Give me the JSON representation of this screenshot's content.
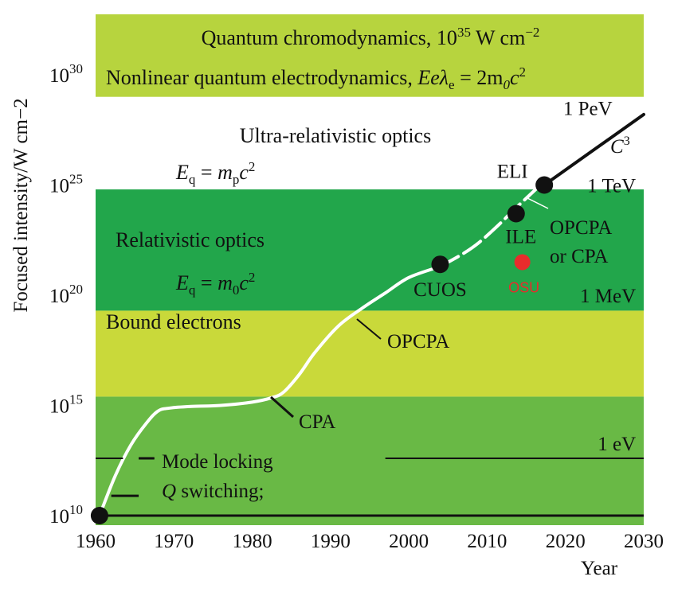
{
  "chart_data": {
    "type": "line",
    "title": "",
    "xlabel": "Year",
    "ylabel": "Focused intensity/W cm−2",
    "xlim": [
      1960,
      2030
    ],
    "ylim": [
      9.5,
      34
    ],
    "x_ticks": [
      "1960",
      "1970",
      "1980",
      "1990",
      "2000",
      "2010",
      "2020",
      "2030"
    ],
    "y_ticks": [
      {
        "value": 10,
        "base": "10",
        "exp": "10"
      },
      {
        "value": 15,
        "base": "10",
        "exp": "15"
      },
      {
        "value": 20,
        "base": "10",
        "exp": "20"
      },
      {
        "value": 25,
        "base": "10",
        "exp": "25"
      },
      {
        "value": 30,
        "base": "10",
        "exp": "30"
      }
    ],
    "bands": [
      {
        "name": "low-optics-band",
        "from": 9.5,
        "to": 15.4,
        "color": "#69b945"
      },
      {
        "name": "bound-electrons-band",
        "from": 15.4,
        "to": 19.3,
        "color": "#c9d93a"
      },
      {
        "name": "relativistic-band",
        "from": 19.3,
        "to": 24.8,
        "color": "#22a64b"
      },
      {
        "name": "qcd-band",
        "from": 29.0,
        "to": 33.8,
        "color": "#b7d43e"
      }
    ],
    "series": [
      {
        "role": "intensity-curve-solid",
        "color": "#ffffff",
        "points": [
          [
            1960.5,
            10
          ],
          [
            1962.5,
            11.8
          ],
          [
            1964.5,
            13.2
          ],
          [
            1966.5,
            14.2
          ],
          [
            1968,
            14.75
          ],
          [
            1969.5,
            14.88
          ],
          [
            1972,
            14.95
          ],
          [
            1976,
            15.0
          ],
          [
            1980,
            15.15
          ],
          [
            1982.5,
            15.35
          ],
          [
            1984,
            15.6
          ],
          [
            1986,
            16.4
          ],
          [
            1988,
            17.4
          ],
          [
            1991,
            18.6
          ],
          [
            1994,
            19.4
          ],
          [
            1997,
            20.1
          ],
          [
            2000,
            20.8
          ],
          [
            2004,
            21.3
          ]
        ]
      },
      {
        "role": "intensity-curve-dashed",
        "color": "#ffffff",
        "points": [
          [
            2004,
            21.3
          ],
          [
            2007,
            21.9
          ],
          [
            2009,
            22.4
          ],
          [
            2011.5,
            23.2
          ],
          [
            2013.5,
            23.9
          ],
          [
            2015,
            24.4
          ],
          [
            2016.5,
            24.9
          ]
        ]
      },
      {
        "role": "future-trend-line",
        "color": "#111111",
        "points": [
          [
            2017.3,
            25.0
          ],
          [
            2030,
            28.2
          ]
        ]
      }
    ],
    "points": [
      {
        "label": "",
        "x": 1960.5,
        "y": 10.0,
        "color": "#111111"
      },
      {
        "label": "CUOS",
        "x": 2004,
        "y": 21.4,
        "color": "#111111"
      },
      {
        "label": "ILE",
        "x": 2013.7,
        "y": 23.7,
        "color": "#111111"
      },
      {
        "label": "ELI",
        "x": 2017.3,
        "y": 25.0,
        "color": "#111111"
      },
      {
        "label": "OSU",
        "x": 2014.5,
        "y": 21.5,
        "color": "#e82c2c"
      }
    ],
    "energy_lines": [
      {
        "label": "1 eV",
        "y": 12.6,
        "segments": [
          [
            1960,
            1963.5
          ],
          [
            1965.5,
            1967.5
          ],
          [
            1997,
            2030
          ]
        ]
      },
      {
        "label": "",
        "y": 10.0,
        "segments": [
          [
            1960,
            2030
          ]
        ]
      }
    ],
    "energy_labels": [
      {
        "text": "1 MeV",
        "x": 2029,
        "y": 20.0
      },
      {
        "text": "1 TeV",
        "x": 2029,
        "y": 25.0
      },
      {
        "text": "1 PeV",
        "x": 2026,
        "y": 28.5
      }
    ],
    "annotations": {
      "qcd": {
        "text": "Quantum chromodynamics, 10",
        "sup": "35",
        "tail": " W cm",
        "tail_sup": "−2"
      },
      "nqed": {
        "text": "Nonlinear quantum electrodynamics, ",
        "formula": "Eeλ",
        "sub": "e",
        "rhs": " = 2m",
        "rhs_sub": "0",
        "rhs_tail": "c",
        "rhs_sup": "2"
      },
      "ultra": "Ultra-relativistic optics",
      "eq_p": {
        "lhs": "E",
        "lhs_sub": "q",
        "eq": " = ",
        "m": "m",
        "m_sub": "p",
        "c": "c",
        "c_sup": "2"
      },
      "relativistic": "Relativistic optics",
      "eq_0": {
        "lhs": "E",
        "lhs_sub": "q",
        "eq": " = ",
        "m": "m",
        "m_sub": "0",
        "c": "c",
        "c_sup": "2"
      },
      "bound": "Bound electrons",
      "opcpa": "OPCPA",
      "opcpa_or_cpa_1": "OPCPA",
      "opcpa_or_cpa_2": "or CPA",
      "cpa": "CPA",
      "c3": "C",
      "c3_sup": "3",
      "mode_locking": "Mode locking",
      "q_switching_q": "Q",
      "q_switching_tail": " switching;"
    }
  }
}
